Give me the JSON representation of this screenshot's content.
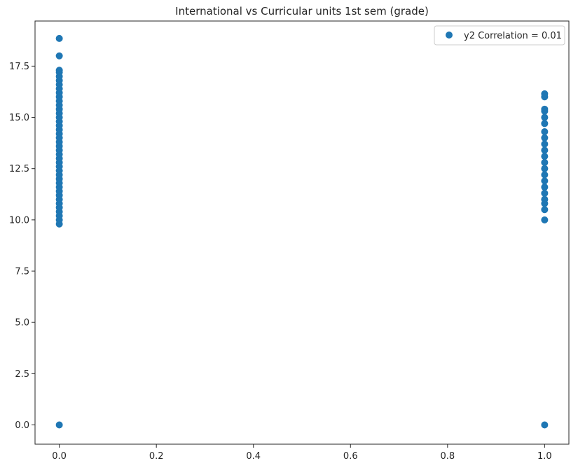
{
  "chart_data": {
    "type": "scatter",
    "title": "International vs Curricular units 1st sem (grade)",
    "xlabel": "",
    "ylabel": "",
    "xlim": [
      -0.05,
      1.05
    ],
    "ylim": [
      -0.94,
      19.7
    ],
    "xticks": [
      0.0,
      0.2,
      0.4,
      0.6,
      0.8,
      1.0
    ],
    "xtick_labels": [
      "0.0",
      "0.2",
      "0.4",
      "0.6",
      "0.8",
      "1.0"
    ],
    "yticks": [
      0.0,
      2.5,
      5.0,
      7.5,
      10.0,
      12.5,
      15.0,
      17.5
    ],
    "ytick_labels": [
      "0.0",
      "2.5",
      "5.0",
      "7.5",
      "10.0",
      "12.5",
      "15.0",
      "17.5"
    ],
    "grid": false,
    "legend": {
      "placement": "top-right",
      "entries": [
        "y2 Correlation = 0.01"
      ]
    },
    "colors": {
      "series": "#1f77b4"
    },
    "series": [
      {
        "name": "y2 Correlation = 0.01",
        "points": [
          [
            0,
            0.0
          ],
          [
            0,
            9.8
          ],
          [
            0,
            10.0
          ],
          [
            0,
            10.2
          ],
          [
            0,
            10.4
          ],
          [
            0,
            10.6
          ],
          [
            0,
            10.8
          ],
          [
            0,
            11.0
          ],
          [
            0,
            11.2
          ],
          [
            0,
            11.4
          ],
          [
            0,
            11.6
          ],
          [
            0,
            11.8
          ],
          [
            0,
            12.0
          ],
          [
            0,
            12.2
          ],
          [
            0,
            12.4
          ],
          [
            0,
            12.6
          ],
          [
            0,
            12.8
          ],
          [
            0,
            13.0
          ],
          [
            0,
            13.2
          ],
          [
            0,
            13.4
          ],
          [
            0,
            13.6
          ],
          [
            0,
            13.8
          ],
          [
            0,
            14.0
          ],
          [
            0,
            14.2
          ],
          [
            0,
            14.4
          ],
          [
            0,
            14.6
          ],
          [
            0,
            14.8
          ],
          [
            0,
            15.0
          ],
          [
            0,
            15.2
          ],
          [
            0,
            15.4
          ],
          [
            0,
            15.6
          ],
          [
            0,
            15.8
          ],
          [
            0,
            16.0
          ],
          [
            0,
            16.2
          ],
          [
            0,
            16.4
          ],
          [
            0,
            16.6
          ],
          [
            0,
            16.8
          ],
          [
            0,
            17.0
          ],
          [
            0,
            17.2
          ],
          [
            0,
            17.3
          ],
          [
            0,
            18.0
          ],
          [
            0,
            18.85
          ],
          [
            1,
            0.0
          ],
          [
            1,
            10.0
          ],
          [
            1,
            10.5
          ],
          [
            1,
            10.8
          ],
          [
            1,
            11.0
          ],
          [
            1,
            11.3
          ],
          [
            1,
            11.6
          ],
          [
            1,
            11.9
          ],
          [
            1,
            12.2
          ],
          [
            1,
            12.5
          ],
          [
            1,
            12.8
          ],
          [
            1,
            13.1
          ],
          [
            1,
            13.4
          ],
          [
            1,
            13.7
          ],
          [
            1,
            14.0
          ],
          [
            1,
            14.3
          ],
          [
            1,
            14.7
          ],
          [
            1,
            15.0
          ],
          [
            1,
            15.3
          ],
          [
            1,
            15.4
          ],
          [
            1,
            16.0
          ],
          [
            1,
            16.15
          ]
        ]
      }
    ]
  }
}
